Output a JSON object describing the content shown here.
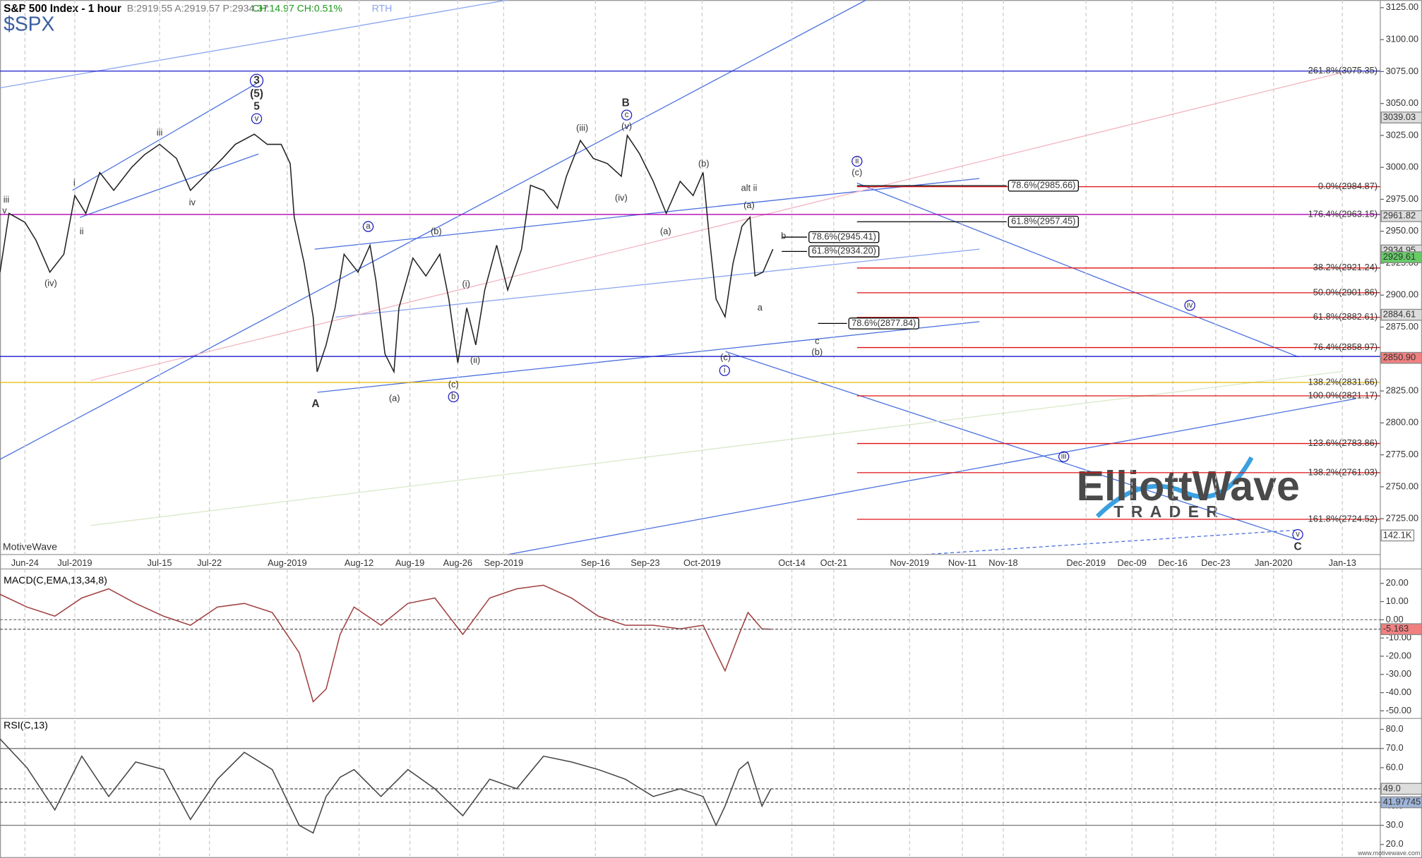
{
  "chart_data": [
    {
      "type": "line",
      "title": "S&P 500 Index - 1 hour",
      "symbol": "$SPX",
      "quote": "B:2919.55 A:2919.57 P:2934.37",
      "change": "CH:14.97 CH:0.51%",
      "session": "RTH",
      "watermark": "MotiveWave",
      "volume_label": "142.1K",
      "logo_top": "ElliottWave",
      "logo_bottom": "TRADER",
      "footer": "www.motivewave.com",
      "color": "#222222",
      "xgrid": true,
      "x": [
        0,
        0.9,
        2.5,
        3.6,
        5,
        6.4,
        7.5,
        8.6,
        10,
        11.4,
        13.2,
        14.5,
        16,
        17.7,
        19.1,
        20.5,
        22.3,
        23.6,
        25.5,
        26.8,
        28.2,
        29.1,
        29.5,
        30.5,
        31.4,
        31.8,
        32.7,
        33.6,
        34.5,
        35.9,
        37.1,
        37.7,
        38.6,
        39.5,
        40,
        41.4,
        42.7,
        44.1,
        45,
        45.9,
        46.8,
        47.7,
        48.6,
        49.8,
        50.9,
        52.3,
        53.2,
        54.5,
        55.9,
        56.8,
        58.2,
        59.5,
        60.9,
        62.3,
        62.9,
        64.1,
        65.5,
        66.8,
        68.2,
        69.5,
        70.5,
        71.1,
        71.8,
        72.7,
        73.5,
        74.4,
        75.2,
        75.7,
        76.5,
        77.5
      ],
      "values": [
        2918,
        2964,
        2957,
        2943,
        2918,
        2932,
        2978,
        2964,
        2996,
        2982,
        3000,
        3010,
        3018,
        3007,
        2982,
        2993,
        3007,
        3018,
        3026,
        3018,
        3018,
        3003,
        2961,
        2925,
        2883,
        2840,
        2861,
        2890,
        2932,
        2918,
        2939,
        2911,
        2854,
        2840,
        2890,
        2929,
        2915,
        2932,
        2897,
        2847,
        2890,
        2861,
        2904,
        2939,
        2904,
        2936,
        2986,
        2982,
        2968,
        2993,
        3021,
        3007,
        3003,
        2993,
        3025,
        3011,
        2989,
        2964,
        2989,
        2978,
        2996,
        2947,
        2897,
        2883,
        2925,
        2954,
        2961,
        2915,
        2918,
        2936
      ],
      "xlim": [
        0,
        138.4
      ],
      "ylim": [
        2697,
        3131
      ],
      "xticks": [
        {
          "value": 2.5,
          "label": "Jun-24"
        },
        {
          "value": 7.5,
          "label": "Jul-2019"
        },
        {
          "value": 16,
          "label": "Jul-15"
        },
        {
          "value": 21,
          "label": "Jul-22"
        },
        {
          "value": 28.8,
          "label": "Aug-2019"
        },
        {
          "value": 36,
          "label": "Aug-12"
        },
        {
          "value": 41.1,
          "label": "Aug-19"
        },
        {
          "value": 45.9,
          "label": "Aug-26"
        },
        {
          "value": 50.5,
          "label": "Sep-2019"
        },
        {
          "value": 59.7,
          "label": "Sep-16"
        },
        {
          "value": 64.7,
          "label": "Sep-23"
        },
        {
          "value": 70.4,
          "label": "Oct-2019"
        },
        {
          "value": 79.4,
          "label": "Oct-14"
        },
        {
          "value": 83.6,
          "label": "Oct-21"
        },
        {
          "value": 91.2,
          "label": "Nov-2019"
        },
        {
          "value": 96.5,
          "label": "Nov-11"
        },
        {
          "value": 100.6,
          "label": "Nov-18"
        },
        {
          "value": 108.9,
          "label": "Dec-2019"
        },
        {
          "value": 113.5,
          "label": "Dec-09"
        },
        {
          "value": 117.6,
          "label": "Dec-16"
        },
        {
          "value": 121.9,
          "label": "Dec-23"
        },
        {
          "value": 127.7,
          "label": "Jan-2020"
        },
        {
          "value": 134.6,
          "label": "Jan-13"
        }
      ],
      "yticks": [
        {
          "value": 3125,
          "label": "3125.00"
        },
        {
          "value": 3100,
          "label": "3100.00"
        },
        {
          "value": 3075,
          "label": "3075.00"
        },
        {
          "value": 3050,
          "label": "3050.00"
        },
        {
          "value": 3025,
          "label": "3025.00"
        },
        {
          "value": 3000,
          "label": "3000.00"
        },
        {
          "value": 2975,
          "label": "2975.00"
        },
        {
          "value": 2950,
          "label": "2950.00"
        },
        {
          "value": 2925,
          "label": "2925.00"
        },
        {
          "value": 2900,
          "label": "2900.00"
        },
        {
          "value": 2875,
          "label": "2875.00"
        },
        {
          "value": 2850,
          "label": "2850.00"
        },
        {
          "value": 2825,
          "label": "2825.00"
        },
        {
          "value": 2800,
          "label": "2800.00"
        },
        {
          "value": 2775,
          "label": "2775.00"
        },
        {
          "value": 2750,
          "label": "2750.00"
        },
        {
          "value": 2725,
          "label": "2725.00"
        }
      ],
      "fib_levels": [
        {
          "label": "0.0%(2984.87)",
          "value": 2984.87
        },
        {
          "label": "38.2%(2921.24)",
          "value": 2921.24
        },
        {
          "label": "50.0%(2901.86)",
          "value": 2901.86
        },
        {
          "label": "61.8%(2882.61)",
          "value": 2882.61
        },
        {
          "label": "76.4%(2858.97)",
          "value": 2858.97
        },
        {
          "label": "100.0%(2821.17)",
          "value": 2821.17
        },
        {
          "label": "123.6%(2783.86)",
          "value": 2783.86
        },
        {
          "label": "138.2%(2761.03)",
          "value": 2761.03
        },
        {
          "label": "161.8%(2724.52)",
          "value": 2724.52
        }
      ],
      "fib_color": "#e01010",
      "horizontal_lines": [
        {
          "label": "261.8%(3075.35)",
          "value": 3075.35,
          "color": "#1a1acc"
        },
        {
          "label": "176.4%(2963.15)",
          "value": 2963.15,
          "color": "#b000b0"
        },
        {
          "label": "138.2%(2831.66)",
          "value": 2831.66,
          "color": "#e0b800"
        },
        {
          "value": 2852,
          "color": "#1a1acc"
        }
      ],
      "fib_boxes": [
        {
          "label": "78.6%(2985.66)",
          "value": 2985.66
        },
        {
          "label": "61.8%(2957.45)",
          "value": 2957.45
        },
        {
          "label": "78.6%(2945.41)",
          "value": 2945.41
        },
        {
          "label": "61.8%(2934.20)",
          "value": 2934.2
        },
        {
          "label": "78.6%(2877.84)",
          "value": 2877.84
        }
      ],
      "price_markers": [
        {
          "value": 3039.03,
          "label": "3039.03",
          "color": "#dddddd"
        },
        {
          "value": 2961.82,
          "label": "2961.82",
          "color": "#dddddd"
        },
        {
          "value": 2934.95,
          "label": "2934.95",
          "color": "#dddddd"
        },
        {
          "value": 2929.61,
          "label": "2929.61",
          "color": "#66cc66"
        },
        {
          "value": 2884.61,
          "label": "2884.61",
          "color": "#dddddd"
        },
        {
          "value": 2850.9,
          "label": "2850.90",
          "color": "#f08080"
        }
      ],
      "wave_color": "#1f1fbf",
      "wave_labels": [
        {
          "text": "iii"
        },
        {
          "text": "v"
        },
        {
          "text": "(iv)"
        },
        {
          "text": "i"
        },
        {
          "text": "ii"
        },
        {
          "text": "iii"
        },
        {
          "text": "iv"
        },
        {
          "text": "3",
          "circled": true,
          "bold": true
        },
        {
          "text": "(5)",
          "bold": true
        },
        {
          "text": "5",
          "bold": true
        },
        {
          "text": "v",
          "circled": true
        },
        {
          "text": "a",
          "circled": true
        },
        {
          "text": "A",
          "bold": true
        },
        {
          "text": "(a)"
        },
        {
          "text": "(b)"
        },
        {
          "text": "(i)"
        },
        {
          "text": "(ii)"
        },
        {
          "text": "(c)"
        },
        {
          "text": "b",
          "circled": true
        },
        {
          "text": "(iii)"
        },
        {
          "text": "B",
          "bold": true
        },
        {
          "text": "c",
          "circled": true
        },
        {
          "text": "(v)"
        },
        {
          "text": "(iv)"
        },
        {
          "text": "(a)"
        },
        {
          "text": "(b)"
        },
        {
          "text": "alt ii",
          "color": "#e01010"
        },
        {
          "text": "(a)"
        },
        {
          "text": "b"
        },
        {
          "text": "a"
        },
        {
          "text": "c"
        },
        {
          "text": "(b)"
        },
        {
          "text": "(c)"
        },
        {
          "text": "i",
          "circled": true
        },
        {
          "text": "ii",
          "circled": true
        },
        {
          "text": "(c)"
        },
        {
          "text": "iii",
          "circled": true
        },
        {
          "text": "iv",
          "circled": true
        },
        {
          "text": "v",
          "circled": true
        },
        {
          "text": "C",
          "bold": true
        }
      ]
    },
    {
      "type": "line",
      "title": "MACD(C,EMA,13,34,8)",
      "color": "#a04040",
      "x": [
        0,
        2.7,
        5.5,
        8.2,
        10.9,
        13.6,
        16.4,
        19.1,
        21.8,
        24.5,
        27.3,
        30,
        31.4,
        32.7,
        34.1,
        35.5,
        38.2,
        40.9,
        43.6,
        46.4,
        49.1,
        51.8,
        54.5,
        57.3,
        60,
        62.7,
        65.5,
        68.2,
        70.5,
        71.8,
        72.7,
        74.1,
        75,
        76.4,
        77.3
      ],
      "values": [
        14,
        7,
        2,
        12,
        17,
        9,
        2,
        -3,
        7,
        9,
        4,
        -18,
        -45,
        -38,
        -8,
        7,
        -3,
        9,
        12,
        -8,
        12,
        17,
        19,
        12,
        2,
        -3,
        -3,
        -5,
        -3,
        -18,
        -28,
        -8,
        4,
        -5,
        -5.2
      ],
      "xlim": [
        0,
        138.4
      ],
      "ylim": [
        -52.7,
        27.9
      ],
      "yticks": [
        {
          "value": 20,
          "label": "20.00"
        },
        {
          "value": 10,
          "label": "10.00"
        },
        {
          "value": 0,
          "label": "0.00"
        },
        {
          "value": -10,
          "label": "-10.00"
        },
        {
          "value": -20,
          "label": "-20.00"
        },
        {
          "value": -30,
          "label": "-30.00"
        },
        {
          "value": -40,
          "label": "-40.00"
        },
        {
          "value": -50,
          "label": "-50.00"
        }
      ],
      "ref_lines": [
        0
      ],
      "price_markers": [
        {
          "value": -5.163,
          "label": "-5.163",
          "color": "#f08080"
        }
      ]
    },
    {
      "type": "line",
      "title": "RSI(C,13)",
      "color": "#444444",
      "x": [
        0,
        2.7,
        5.5,
        8.2,
        10.9,
        13.6,
        16.4,
        19.1,
        21.8,
        24.5,
        27.3,
        30,
        31.4,
        32.7,
        34.1,
        35.5,
        38.2,
        40.9,
        43.6,
        46.4,
        49.1,
        51.8,
        54.5,
        57.3,
        60,
        62.7,
        65.5,
        68.2,
        70.5,
        71.8,
        72.7,
        74.1,
        75,
        76.4,
        77.3
      ],
      "values": [
        75,
        60,
        38,
        66,
        45,
        63,
        59,
        33,
        54,
        68,
        59,
        30,
        26,
        45,
        55,
        59,
        45,
        59,
        49,
        35,
        54,
        49,
        66,
        63,
        59,
        54,
        45,
        49,
        45,
        30,
        40,
        59,
        63,
        40,
        49
      ],
      "xlim": [
        0,
        138.4
      ],
      "ylim": [
        13.9,
        84.7
      ],
      "yticks": [
        {
          "value": 80,
          "label": "80.0"
        },
        {
          "value": 70,
          "label": "70.0"
        },
        {
          "value": 60,
          "label": "60.0"
        },
        {
          "value": 50,
          "label": "50.0"
        },
        {
          "value": 40,
          "label": "40.0"
        },
        {
          "value": 30,
          "label": "30.0"
        },
        {
          "value": 20,
          "label": "20.0"
        }
      ],
      "ref_lines": [
        70,
        30
      ],
      "price_markers": [
        {
          "value": 49,
          "label": "49.0",
          "color": "#dddddd"
        },
        {
          "value": 41.97745,
          "label": "41.97745",
          "color": "#9fb4d8"
        }
      ]
    }
  ]
}
